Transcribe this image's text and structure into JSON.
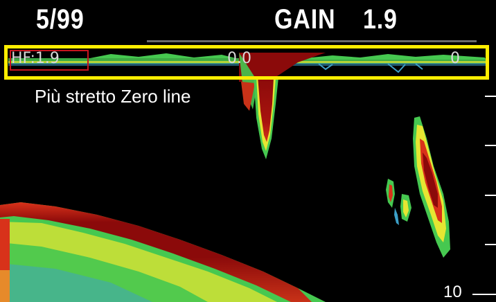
{
  "header": {
    "page_counter": "5/99",
    "gain_label": "GAIN",
    "gain_value": "1.9"
  },
  "zero_line_band": {
    "frequency_label": "HF:1.9",
    "center_value": "0.0",
    "right_value": "0",
    "highlight_color": "#ffee00",
    "frequency_box_color": "#c8141e"
  },
  "caption": "Più stretto Zero line",
  "depth_scale": {
    "label": "10"
  },
  "colors": {
    "background": "#000000",
    "echo_strong": "#8b0a0a",
    "echo_medium": "#d8321a",
    "echo_weak_yellow": "#e6e632",
    "echo_weak_green": "#46c850",
    "echo_faint_cyan": "#3ca0c8"
  }
}
